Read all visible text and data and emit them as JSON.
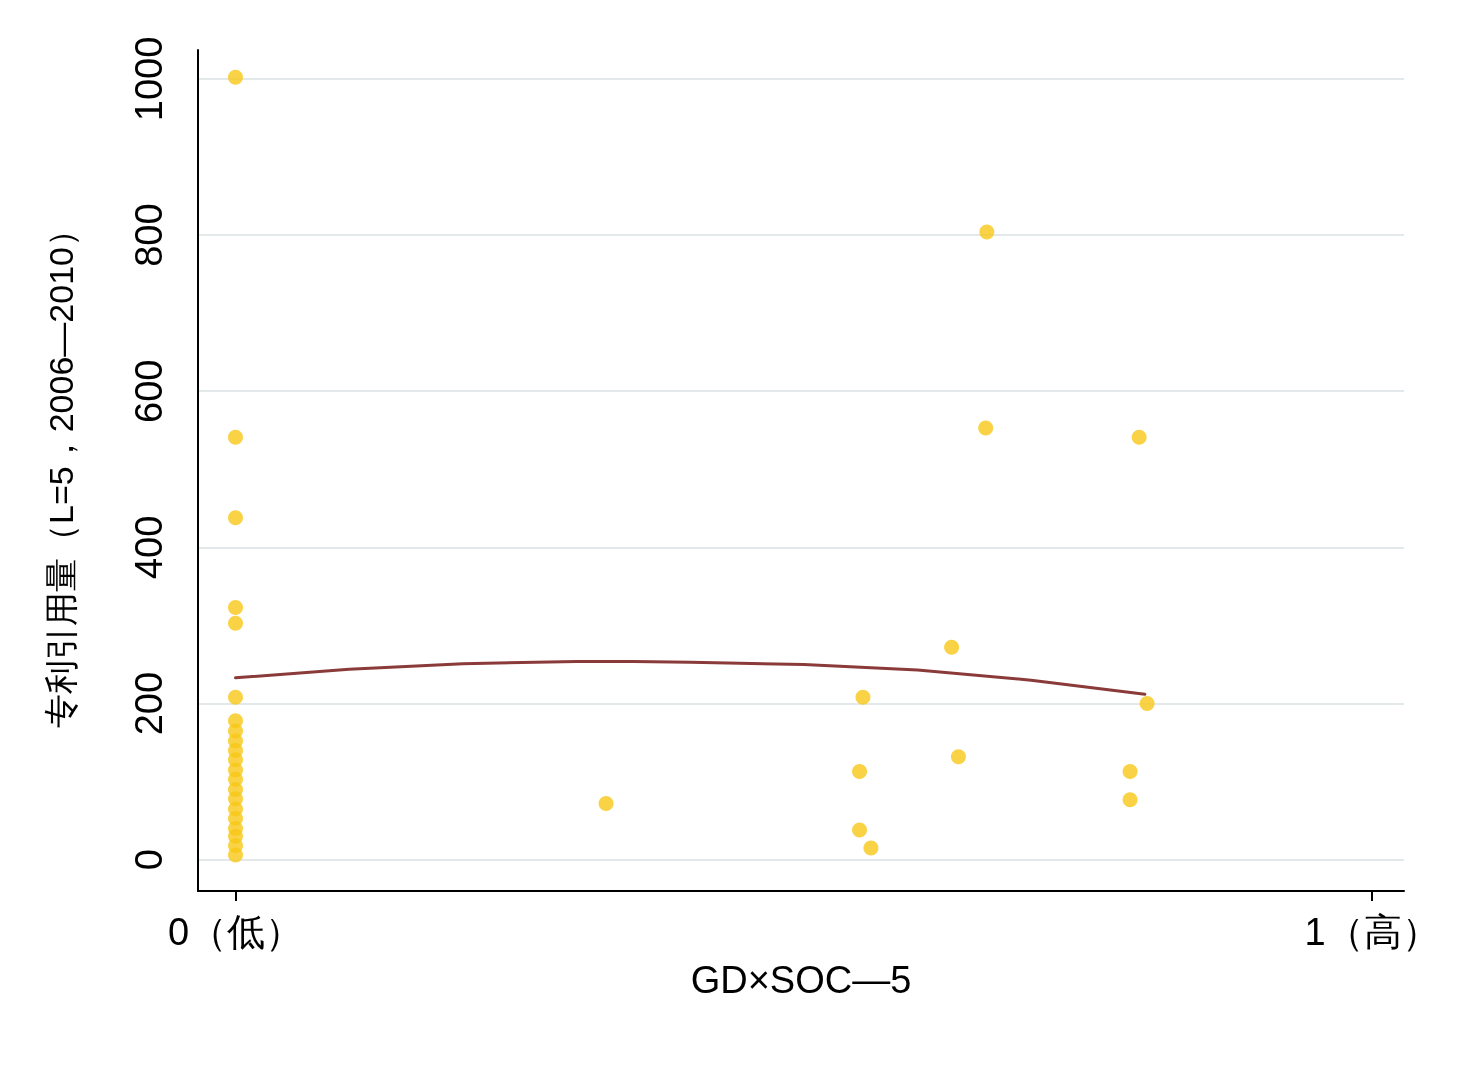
{
  "chart_data": {
    "type": "scatter",
    "xlabel": "GD×SOC—5",
    "ylabel": "专利引用量（L=5，2006—2010）",
    "xlim": [
      -0.033,
      1.028
    ],
    "xticks": [
      {
        "value": 0,
        "label": "0（低）"
      },
      {
        "value": 1,
        "label": "1（高）"
      }
    ],
    "ylim": [
      -40,
      1037
    ],
    "yticks": [
      0,
      200,
      400,
      600,
      800,
      1000
    ],
    "grid": "y",
    "marker": "circle",
    "series": [
      {
        "color": "#f7c816",
        "x": [
          0,
          0,
          0,
          0,
          0,
          0,
          0,
          0,
          0,
          0,
          0,
          0,
          0,
          0,
          0,
          0,
          0,
          0,
          0,
          0,
          0,
          0.326,
          0.549,
          0.549,
          0.552,
          0.559,
          0.63,
          0.636,
          0.66,
          0.661,
          0.795,
          0.787,
          0.787,
          0.802
        ],
        "values": [
          1002,
          541,
          438,
          323,
          303,
          208,
          178,
          165,
          152,
          140,
          128,
          115,
          103,
          90,
          78,
          65,
          53,
          40,
          30,
          18,
          6,
          72,
          38,
          113,
          208,
          15,
          272,
          132,
          553,
          804,
          541,
          113,
          77,
          200
        ]
      },
      {
        "type": "line",
        "color": "#8b3a3a",
        "marker": "none",
        "line_style": "solid",
        "x": [
          0,
          0.1,
          0.2,
          0.3,
          0.35,
          0.4,
          0.5,
          0.6,
          0.7,
          0.8
        ],
        "values": [
          233,
          244,
          251,
          254,
          254,
          253,
          250,
          243,
          230,
          212
        ]
      }
    ]
  }
}
